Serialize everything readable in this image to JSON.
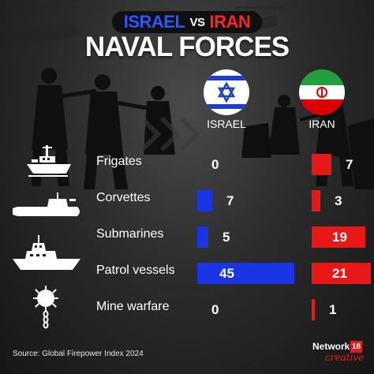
{
  "header": {
    "israel": "ISRAEL",
    "vs": "VS",
    "iran": "IRAN",
    "title": "NAVAL FORCES"
  },
  "countries": {
    "israel": {
      "label": "ISRAEL",
      "color": "#1a35e6"
    },
    "iran": {
      "label": "IRAN",
      "color": "#e81818"
    }
  },
  "rows": [
    {
      "label": "Frigates",
      "icon": "frigate-icon",
      "israel": 0,
      "iran": 7
    },
    {
      "label": "Corvettes",
      "icon": "submarine-icon",
      "israel": 7,
      "iran": 3
    },
    {
      "label": "Submarines",
      "icon": "submarine-icon",
      "israel": 5,
      "iran": 19
    },
    {
      "label": "Patrol vessels",
      "icon": "patrol-vessel-icon",
      "israel": 45,
      "iran": 21
    },
    {
      "label": "Mine warfare",
      "icon": "naval-mine-icon",
      "israel": 0,
      "iran": 1
    }
  ],
  "footer": {
    "source": "Source: Global Firepower Index 2024",
    "logo_name": "Network",
    "logo_number": "18",
    "logo_sub": "creative"
  }
}
